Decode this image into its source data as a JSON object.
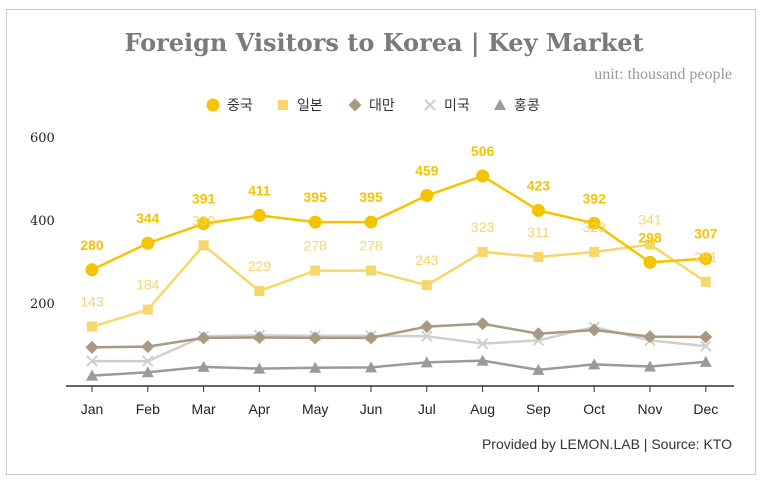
{
  "title": "Foreign Visitors to Korea | Key Market",
  "unit": "unit: thousand people",
  "source": "Provided by LEMON.LAB | Source: KTO",
  "colors": {
    "china": "#F5C400",
    "japan": "#F7D66A",
    "taiwan": "#A89A82",
    "usa": "#CFCFCF",
    "hongkong": "#9A9A9A",
    "axis": "#333333"
  },
  "chart_data": {
    "type": "line",
    "categories": [
      "Jan",
      "Feb",
      "Mar",
      "Apr",
      "May",
      "Jun",
      "Jul",
      "Aug",
      "Sep",
      "Oct",
      "Nov",
      "Dec"
    ],
    "ylim": [
      0,
      600
    ],
    "yticks": [
      200,
      400,
      600
    ],
    "grid": false,
    "legend_position": "top-center",
    "series": [
      {
        "name": "중국",
        "marker": "circle",
        "color": "#F5C400",
        "labeled": true,
        "values": [
          280,
          344,
          391,
          411,
          395,
          395,
          459,
          506,
          423,
          392,
          298,
          307
        ]
      },
      {
        "name": "일본",
        "marker": "square",
        "color": "#F7D66A",
        "labeled": true,
        "values": [
          143,
          184,
          339,
          229,
          278,
          278,
          243,
          323,
          311,
          323,
          341,
          251
        ]
      },
      {
        "name": "대만",
        "marker": "diamond",
        "color": "#A89A82",
        "labeled": false,
        "values": [
          93,
          95,
          116,
          117,
          116,
          116,
          143,
          150,
          126,
          135,
          119,
          118
        ]
      },
      {
        "name": "미국",
        "marker": "x",
        "color": "#CFCFCF",
        "labeled": false,
        "values": [
          60,
          60,
          120,
          122,
          121,
          121,
          120,
          102,
          110,
          142,
          110,
          96
        ]
      },
      {
        "name": "홍콩",
        "marker": "triangle",
        "color": "#9A9A9A",
        "labeled": false,
        "values": [
          25,
          33,
          46,
          42,
          44,
          45,
          57,
          61,
          39,
          52,
          47,
          58
        ]
      }
    ]
  }
}
